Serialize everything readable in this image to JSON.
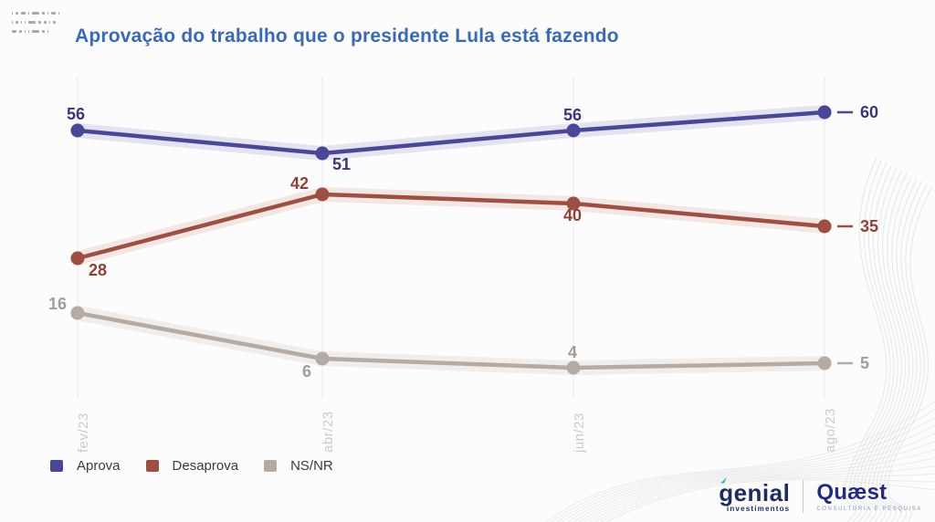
{
  "title": "Aprovação do trabalho que o presidente Lula está fazendo",
  "colors": {
    "title_blue": "#3a6ab3",
    "gridline": "#ebe8e7",
    "month_label": "#cbcbcb",
    "background": "#fcfcfc"
  },
  "chart_data": {
    "type": "line",
    "title": "Aprovação do trabalho que o presidente Lula está fazendo",
    "categories": [
      "fev/23",
      "abr/23",
      "jun/23",
      "ago/23"
    ],
    "series": [
      {
        "name": "Aprova",
        "values": [
          56,
          51,
          56,
          60
        ],
        "color": "#4b4797",
        "halo": "#e5e3f2",
        "label_color": "#3a3775"
      },
      {
        "name": "Desaprova",
        "values": [
          28,
          42,
          40,
          35
        ],
        "color": "#9d4f44",
        "halo": "#f3e6e3",
        "label_color": "#8e4237"
      },
      {
        "name": "NS/NR",
        "values": [
          16,
          6,
          4,
          5
        ],
        "color": "#b4aba5",
        "halo": "#f0edea",
        "label_color": "#a59c96"
      }
    ],
    "xlabel": "",
    "ylabel": "",
    "ylim": [
      0,
      70
    ],
    "grid": "vertical-only",
    "legend_position": "bottom-left",
    "point_labels_shown": true
  },
  "branding": {
    "genial": {
      "name": "genial",
      "sub": "investimentos"
    },
    "quaest": {
      "name": "Quæst",
      "sub": "CONSULTORIA E PESQUISA"
    }
  }
}
